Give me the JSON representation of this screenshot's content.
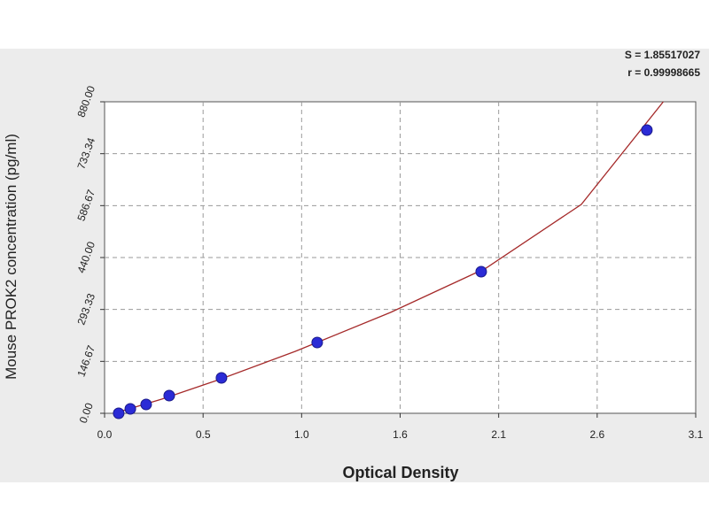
{
  "chart_data": {
    "type": "scatter",
    "x_label": "Optical Density",
    "y_label": "Mouse PROK2 concentration (pg/ml)",
    "annotations": [
      "S = 1.85517027",
      "r = 0.99998665"
    ],
    "xlim": [
      0,
      3.1
    ],
    "xticks": [
      {
        "value": 0,
        "label": "0.0"
      },
      {
        "value": 0.5167,
        "label": "0.5"
      },
      {
        "value": 1.0333,
        "label": "1.0"
      },
      {
        "value": 1.55,
        "label": "1.6"
      },
      {
        "value": 2.0667,
        "label": "2.1"
      },
      {
        "value": 2.5833,
        "label": "2.6"
      },
      3.1
    ],
    "ylim": [
      0,
      880
    ],
    "yticks": [
      {
        "value": 0,
        "label": "0.00"
      },
      146.67,
      293.33,
      {
        "value": 440,
        "label": "440.00"
      },
      586.67,
      733.34,
      {
        "value": 880,
        "label": "880.00"
      }
    ],
    "grid": true,
    "series": [
      {
        "color": "#2b2bd6",
        "x": [
          0.074,
          0.135,
          0.218,
          0.339,
          0.613,
          1.115,
          1.975,
          2.844
        ],
        "values": [
          0,
          12.5,
          25,
          50,
          100,
          200,
          400,
          800
        ]
      },
      {
        "type": "line",
        "color": "#a52a2a",
        "x": [
          0.05,
          0.3,
          0.6,
          1.0,
          1.5,
          2.0,
          2.5,
          2.93
        ],
        "values": [
          0,
          40,
          95,
          175,
          285,
          410,
          590,
          880
        ]
      }
    ]
  }
}
